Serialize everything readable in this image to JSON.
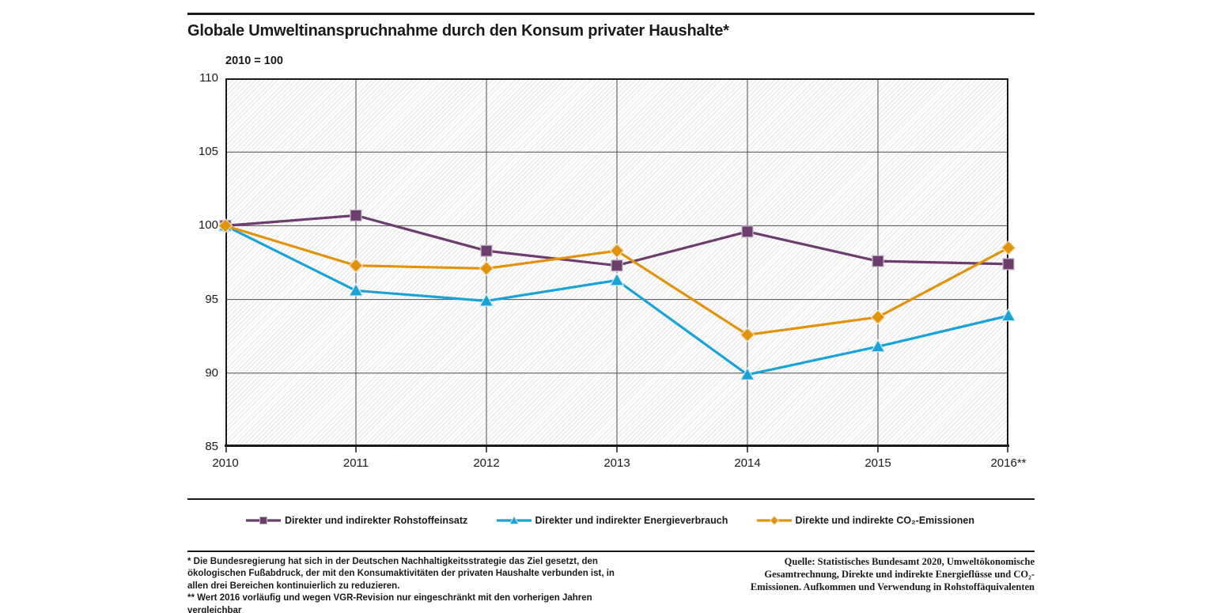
{
  "header": {
    "title": "Globale Umweltinanspruchnahme durch den Konsum privater Haushalte*",
    "unit_note": "2010 = 100"
  },
  "chart_data": {
    "type": "line",
    "title": "Globale Umweltinanspruchnahme durch den Konsum privater Haushalte*",
    "index_note": "2010 = 100",
    "x_labels": [
      "2010",
      "2011",
      "2012",
      "2013",
      "2014",
      "2015",
      "2016**"
    ],
    "y_ticks": [
      85,
      90,
      95,
      100,
      105,
      110
    ],
    "ylim": [
      85,
      110
    ],
    "grid": true,
    "legend_position": "bottom",
    "axis_color": "#1a1a1a",
    "grid_color": "#4d4d4d",
    "plot_hatch": "light-gray diagonal",
    "series": [
      {
        "name": "Direkter und indirekter Rohstoffeinsatz",
        "marker": "square",
        "color": "#6b3e6e",
        "marker_stroke": "#c9b7cb",
        "values": [
          100,
          100.7,
          98.3,
          97.3,
          99.6,
          97.6,
          97.4
        ]
      },
      {
        "name": "Direkter und indirekter Energieverbrauch",
        "marker": "triangle",
        "color": "#1ba3d8",
        "marker_stroke": "#d3ecf7",
        "values": [
          100,
          95.6,
          94.9,
          96.3,
          89.9,
          91.8,
          93.9
        ]
      },
      {
        "name": "Direkte und indirekte CO₂-Emissionen",
        "marker": "diamond",
        "color": "#e2930c",
        "marker_stroke": "#f4ddb4",
        "values": [
          100,
          97.3,
          97.1,
          98.3,
          92.6,
          93.8,
          98.5
        ]
      }
    ]
  },
  "footnotes": {
    "note_1": "* Die Bundesregierung hat sich in der Deutschen Nachhaltigkeitsstrategie das Ziel gesetzt, den ökologischen Fußabdruck, der mit den Konsumaktivitäten der privaten Haushalte verbunden ist, in allen drei Bereichen kontinuierlich zu reduzieren.",
    "note_2": "** Wert 2016 vorläufig und wegen VGR-Revision nur eingeschränkt mit den vorherigen Jahren vergleichbar",
    "source": "Quelle: Statistisches Bundesamt 2020, Umweltökonomische Gesamtrechnung, Direkte und indirekte Energieflüsse und CO₂-Emissionen. Aufkommen und Verwendung in Rohstoffäquivalenten"
  }
}
